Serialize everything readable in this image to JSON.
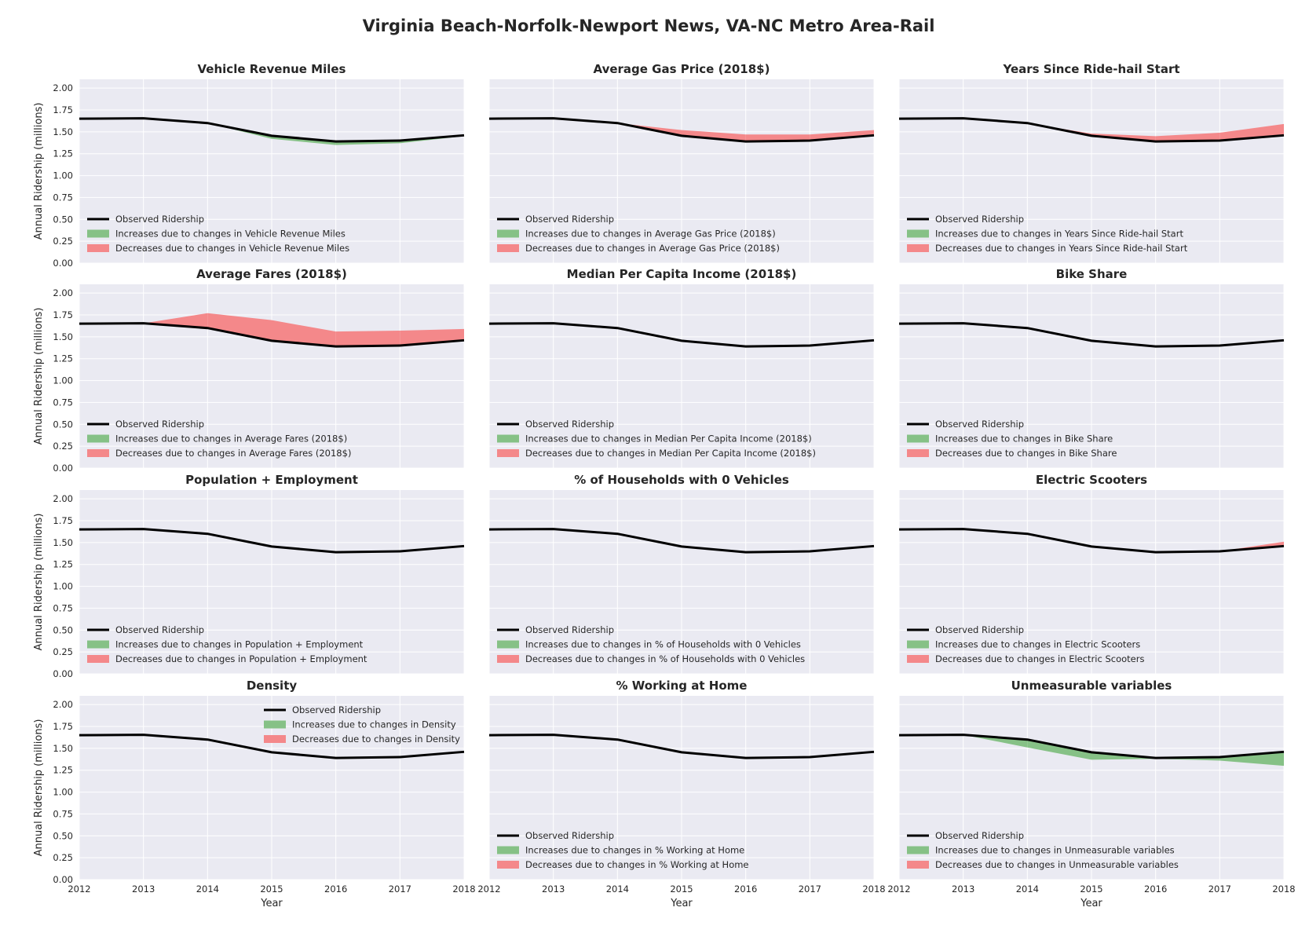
{
  "figure": {
    "title": "Virginia Beach-Norfolk-Newport News, VA-NC Metro Area-Rail",
    "colors": {
      "background": "#eaeaf2",
      "grid": "#ffffff",
      "observed": "#000000",
      "increase": "#86c186",
      "decrease": "#f4888a"
    }
  },
  "chart_data": {
    "type": "area",
    "x": [
      2012,
      2013,
      2014,
      2015,
      2016,
      2017,
      2018
    ],
    "xlabel": "Year",
    "ylabel": "Annual Ridership (millions)",
    "xlim": [
      2012,
      2018
    ],
    "ylim": [
      0.0,
      2.1
    ],
    "xticks": [
      "2012",
      "2013",
      "2014",
      "2015",
      "2016",
      "2017",
      "2018"
    ],
    "yticks": [
      "0.00",
      "0.25",
      "0.50",
      "0.75",
      "1.00",
      "1.25",
      "1.50",
      "1.75",
      "2.00"
    ],
    "grid": true,
    "observed": [
      1.65,
      1.655,
      1.6,
      1.455,
      1.39,
      1.4,
      1.46
    ],
    "legend_observed": "Observed Ridership",
    "panels": [
      {
        "title": "Vehicle Revenue Miles",
        "legend": [
          "Increases due to changes in Vehicle Revenue Miles",
          "Decreases due to changes in Vehicle Revenue Miles"
        ],
        "legend_position": "lower-left",
        "bounds": [
          1.65,
          1.655,
          1.6,
          1.42,
          1.35,
          1.37,
          1.45
        ]
      },
      {
        "title": "Average Gas Price (2018$)",
        "legend": [
          "Increases due to changes in Average Gas Price (2018$)",
          "Decreases due to changes in Average Gas Price (2018$)"
        ],
        "legend_position": "lower-left",
        "bounds": [
          1.65,
          1.655,
          1.6,
          1.52,
          1.47,
          1.47,
          1.52
        ]
      },
      {
        "title": "Years Since Ride-hail Start",
        "legend": [
          "Increases due to changes in Years Since Ride-hail Start",
          "Decreases due to changes in Years Since Ride-hail Start"
        ],
        "legend_position": "lower-left",
        "bounds": [
          1.65,
          1.655,
          1.6,
          1.48,
          1.45,
          1.49,
          1.59
        ]
      },
      {
        "title": "Average Fares (2018$)",
        "legend": [
          "Increases due to changes in Average Fares (2018$)",
          "Decreases due to changes in Average Fares (2018$)"
        ],
        "legend_position": "lower-left",
        "bounds": [
          1.65,
          1.655,
          1.77,
          1.69,
          1.56,
          1.57,
          1.59
        ]
      },
      {
        "title": "Median Per Capita Income (2018$)",
        "legend": [
          "Increases due to changes in Median Per Capita Income (2018$)",
          "Decreases due to changes in Median Per Capita Income (2018$)"
        ],
        "legend_position": "lower-left",
        "bounds": [
          1.65,
          1.655,
          1.6,
          1.455,
          1.39,
          1.4,
          1.46
        ]
      },
      {
        "title": "Bike Share",
        "legend": [
          "Increases due to changes in Bike Share",
          "Decreases due to changes in Bike Share"
        ],
        "legend_position": "lower-left",
        "bounds": [
          1.65,
          1.655,
          1.6,
          1.455,
          1.39,
          1.4,
          1.46
        ]
      },
      {
        "title": "Population + Employment",
        "legend": [
          "Increases due to changes in Population + Employment",
          "Decreases due to changes in Population + Employment"
        ],
        "legend_position": "lower-left",
        "bounds": [
          1.65,
          1.655,
          1.6,
          1.455,
          1.39,
          1.4,
          1.46
        ]
      },
      {
        "title": "% of Households with 0 Vehicles",
        "legend": [
          "Increases due to changes in % of Households with 0 Vehicles",
          "Decreases due to changes in % of Households with 0 Vehicles"
        ],
        "legend_position": "lower-left",
        "bounds": [
          1.65,
          1.655,
          1.6,
          1.455,
          1.39,
          1.4,
          1.46
        ]
      },
      {
        "title": "Electric Scooters",
        "legend": [
          "Increases due to changes in Electric Scooters",
          "Decreases due to changes in Electric Scooters"
        ],
        "legend_position": "lower-left",
        "bounds": [
          1.65,
          1.655,
          1.6,
          1.455,
          1.39,
          1.4,
          1.51
        ]
      },
      {
        "title": "Density",
        "legend": [
          "Increases due to changes in Density",
          "Decreases due to changes in Density"
        ],
        "legend_position": "top-right",
        "bounds": [
          1.65,
          1.655,
          1.6,
          1.455,
          1.39,
          1.4,
          1.46
        ]
      },
      {
        "title": "% Working at Home",
        "legend": [
          "Increases due to changes in % Working at Home",
          "Decreases due to changes in % Working at Home"
        ],
        "legend_position": "lower-left",
        "bounds": [
          1.65,
          1.655,
          1.6,
          1.455,
          1.39,
          1.4,
          1.46
        ]
      },
      {
        "title": "Unmeasurable variables",
        "legend": [
          "Increases due to changes in Unmeasurable variables",
          "Decreases due to changes in Unmeasurable variables"
        ],
        "legend_position": "lower-left",
        "bounds": [
          1.65,
          1.655,
          1.51,
          1.37,
          1.38,
          1.36,
          1.3
        ]
      }
    ]
  }
}
